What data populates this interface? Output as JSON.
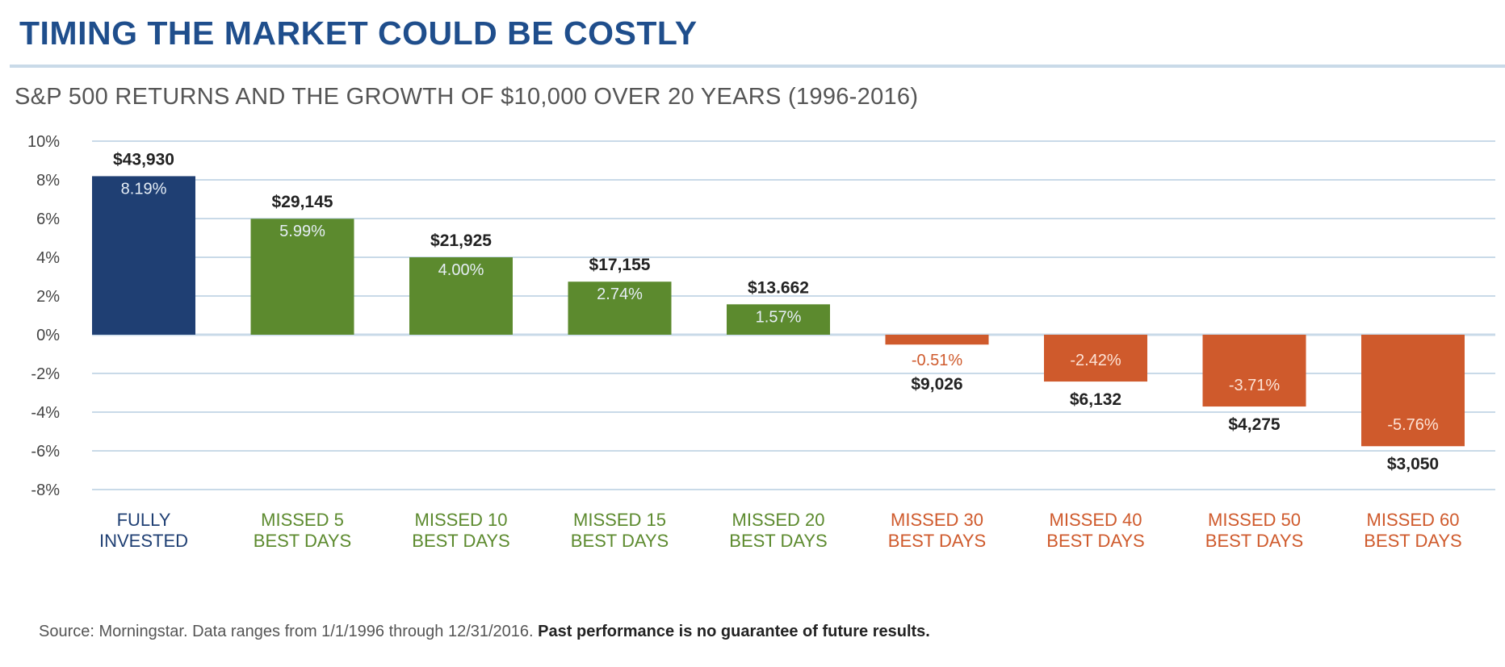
{
  "header": {
    "title": "TIMING THE MARKET COULD BE COSTLY",
    "subtitle": "S&P 500 RETURNS AND THE GROWTH OF $10,000 OVER 20 YEARS (1996-2016)"
  },
  "footer": {
    "source_text": "Source: Morningstar. Data ranges from 1/1/1996 through 12/31/2016.",
    "disclaimer": "Past performance is no guarantee of future results."
  },
  "colors": {
    "fully_invested": "#1f3f73",
    "missed_positive": "#5c8a2e",
    "missed_negative": "#cf5a2c",
    "grid": "#c9dae8",
    "label_dark": "#222222"
  },
  "chart_data": {
    "type": "bar",
    "title": "TIMING THE MARKET COULD BE COSTLY",
    "subtitle": "S&P 500 RETURNS AND THE GROWTH OF $10,000 OVER 20 YEARS (1996-2016)",
    "ylabel": "",
    "xlabel": "",
    "ylim": [
      -8,
      10
    ],
    "yticks": [
      10,
      8,
      6,
      4,
      2,
      0,
      -2,
      -4,
      -6,
      -8
    ],
    "ytick_labels": [
      "10%",
      "8%",
      "6%",
      "4%",
      "2%",
      "0%",
      "-2%",
      "-4%",
      "-6%",
      "-8%"
    ],
    "grid": true,
    "categories": [
      [
        "FULLY",
        "INVESTED"
      ],
      [
        "MISSED 5",
        "BEST DAYS"
      ],
      [
        "MISSED 10",
        "BEST DAYS"
      ],
      [
        "MISSED 15",
        "BEST DAYS"
      ],
      [
        "MISSED 20",
        "BEST DAYS"
      ],
      [
        "MISSED 30",
        "BEST DAYS"
      ],
      [
        "MISSED 40",
        "BEST DAYS"
      ],
      [
        "MISSED 50",
        "BEST DAYS"
      ],
      [
        "MISSED 60",
        "BEST DAYS"
      ]
    ],
    "values": [
      8.19,
      5.99,
      4.0,
      2.74,
      1.57,
      -0.51,
      -2.42,
      -3.71,
      -5.76
    ],
    "value_labels": [
      "8.19%",
      "5.99%",
      "4.00%",
      "2.74%",
      "1.57%",
      "-0.51%",
      "-2.42%",
      "-3.71%",
      "-5.76%"
    ],
    "growth_labels": [
      "$43,930",
      "$29,145",
      "$21,925",
      "$17,155",
      "$13.662",
      "$9,026",
      "$6,132",
      "$4,275",
      "$3,050"
    ],
    "groups": [
      "fully_invested",
      "missed_positive",
      "missed_positive",
      "missed_positive",
      "missed_positive",
      "missed_negative",
      "missed_negative",
      "missed_negative",
      "missed_negative"
    ]
  }
}
